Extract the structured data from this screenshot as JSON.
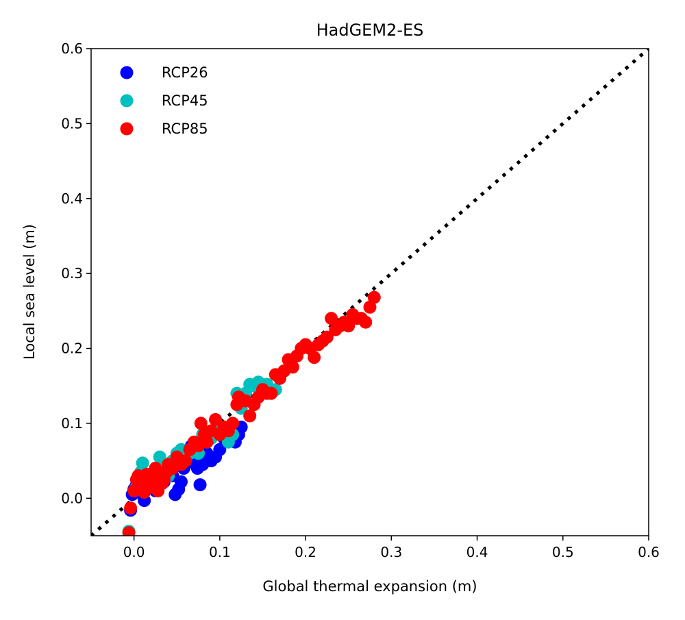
{
  "chart_data": {
    "type": "scatter",
    "title": "HadGEM2-ES",
    "xlabel": "Global thermal expansion (m)",
    "ylabel": "Local sea level (m)",
    "xlim": [
      -0.05,
      0.6
    ],
    "ylim": [
      -0.05,
      0.6
    ],
    "xticks": [
      "0.0",
      "0.1",
      "0.2",
      "0.3",
      "0.4",
      "0.5",
      "0.6"
    ],
    "yticks": [
      "0.0",
      "0.1",
      "0.2",
      "0.3",
      "0.4",
      "0.5",
      "0.6"
    ],
    "grid": false,
    "legend_position": "top-left",
    "reference_line": {
      "style": "dotted",
      "color": "#000000",
      "x": [
        -0.05,
        0.6
      ],
      "y": [
        -0.05,
        0.6
      ]
    },
    "series": [
      {
        "name": "RCP26",
        "color": "#0000ff",
        "points": [
          [
            -0.004,
            -0.016
          ],
          [
            -0.002,
            0.005
          ],
          [
            0.0,
            0.012
          ],
          [
            0.003,
            0.018
          ],
          [
            0.006,
            0.008
          ],
          [
            0.008,
            0.022
          ],
          [
            0.012,
            -0.003
          ],
          [
            0.015,
            0.015
          ],
          [
            0.02,
            0.02
          ],
          [
            0.025,
            0.01
          ],
          [
            0.03,
            0.03
          ],
          [
            0.035,
            0.022
          ],
          [
            0.04,
            0.035
          ],
          [
            0.045,
            0.03
          ],
          [
            0.048,
            0.005
          ],
          [
            0.052,
            0.012
          ],
          [
            0.055,
            0.022
          ],
          [
            0.058,
            0.04
          ],
          [
            0.06,
            0.045
          ],
          [
            0.063,
            0.06
          ],
          [
            0.067,
            0.07
          ],
          [
            0.07,
            0.05
          ],
          [
            0.074,
            0.04
          ],
          [
            0.077,
            0.018
          ],
          [
            0.08,
            0.045
          ],
          [
            0.085,
            0.06
          ],
          [
            0.09,
            0.05
          ],
          [
            0.095,
            0.055
          ],
          [
            0.1,
            0.065
          ],
          [
            0.105,
            0.08
          ],
          [
            0.11,
            0.09
          ],
          [
            0.118,
            0.075
          ],
          [
            0.122,
            0.085
          ],
          [
            0.125,
            0.095
          ]
        ]
      },
      {
        "name": "RCP45",
        "color": "#00bfbf",
        "points": [
          [
            -0.006,
            -0.044
          ],
          [
            0.003,
            0.015
          ],
          [
            0.008,
            0.035
          ],
          [
            0.01,
            0.047
          ],
          [
            0.015,
            0.025
          ],
          [
            0.02,
            0.02
          ],
          [
            0.025,
            0.04
          ],
          [
            0.028,
            0.01
          ],
          [
            0.03,
            0.055
          ],
          [
            0.035,
            0.045
          ],
          [
            0.04,
            0.03
          ],
          [
            0.045,
            0.05
          ],
          [
            0.05,
            0.06
          ],
          [
            0.055,
            0.065
          ],
          [
            0.06,
            0.055
          ],
          [
            0.065,
            0.06
          ],
          [
            0.07,
            0.065
          ],
          [
            0.075,
            0.06
          ],
          [
            0.08,
            0.085
          ],
          [
            0.085,
            0.075
          ],
          [
            0.09,
            0.08
          ],
          [
            0.095,
            0.085
          ],
          [
            0.1,
            0.09
          ],
          [
            0.105,
            0.095
          ],
          [
            0.11,
            0.075
          ],
          [
            0.115,
            0.085
          ],
          [
            0.12,
            0.14
          ],
          [
            0.125,
            0.12
          ],
          [
            0.13,
            0.14
          ],
          [
            0.135,
            0.152
          ],
          [
            0.14,
            0.15
          ],
          [
            0.145,
            0.155
          ],
          [
            0.15,
            0.145
          ],
          [
            0.155,
            0.152
          ],
          [
            0.16,
            0.14
          ],
          [
            0.165,
            0.145
          ]
        ]
      },
      {
        "name": "RCP85",
        "color": "#ff0000",
        "points": [
          [
            -0.006,
            -0.046
          ],
          [
            -0.004,
            -0.013
          ],
          [
            0.0,
            0.01
          ],
          [
            0.003,
            0.025
          ],
          [
            0.005,
            0.03
          ],
          [
            0.008,
            0.012
          ],
          [
            0.01,
            0.02
          ],
          [
            0.012,
            0.008
          ],
          [
            0.015,
            0.032
          ],
          [
            0.018,
            0.015
          ],
          [
            0.02,
            0.025
          ],
          [
            0.022,
            0.018
          ],
          [
            0.025,
            0.04
          ],
          [
            0.028,
            0.01
          ],
          [
            0.03,
            0.03
          ],
          [
            0.033,
            0.02
          ],
          [
            0.035,
            0.025
          ],
          [
            0.038,
            0.035
          ],
          [
            0.04,
            0.045
          ],
          [
            0.045,
            0.04
          ],
          [
            0.05,
            0.055
          ],
          [
            0.055,
            0.045
          ],
          [
            0.06,
            0.05
          ],
          [
            0.065,
            0.065
          ],
          [
            0.07,
            0.075
          ],
          [
            0.075,
            0.07
          ],
          [
            0.078,
            0.1
          ],
          [
            0.082,
            0.085
          ],
          [
            0.085,
            0.075
          ],
          [
            0.09,
            0.09
          ],
          [
            0.095,
            0.105
          ],
          [
            0.1,
            0.085
          ],
          [
            0.105,
            0.095
          ],
          [
            0.11,
            0.09
          ],
          [
            0.115,
            0.1
          ],
          [
            0.12,
            0.125
          ],
          [
            0.122,
            0.135
          ],
          [
            0.125,
            0.13
          ],
          [
            0.13,
            0.13
          ],
          [
            0.135,
            0.11
          ],
          [
            0.14,
            0.125
          ],
          [
            0.145,
            0.135
          ],
          [
            0.15,
            0.145
          ],
          [
            0.155,
            0.14
          ],
          [
            0.16,
            0.14
          ],
          [
            0.165,
            0.165
          ],
          [
            0.17,
            0.16
          ],
          [
            0.175,
            0.17
          ],
          [
            0.18,
            0.185
          ],
          [
            0.185,
            0.175
          ],
          [
            0.19,
            0.19
          ],
          [
            0.195,
            0.2
          ],
          [
            0.2,
            0.205
          ],
          [
            0.205,
            0.2
          ],
          [
            0.21,
            0.188
          ],
          [
            0.215,
            0.205
          ],
          [
            0.22,
            0.21
          ],
          [
            0.225,
            0.215
          ],
          [
            0.23,
            0.24
          ],
          [
            0.235,
            0.225
          ],
          [
            0.24,
            0.23
          ],
          [
            0.245,
            0.235
          ],
          [
            0.25,
            0.23
          ],
          [
            0.255,
            0.245
          ],
          [
            0.26,
            0.24
          ],
          [
            0.265,
            0.24
          ],
          [
            0.27,
            0.235
          ],
          [
            0.275,
            0.255
          ],
          [
            0.28,
            0.268
          ]
        ]
      }
    ]
  }
}
